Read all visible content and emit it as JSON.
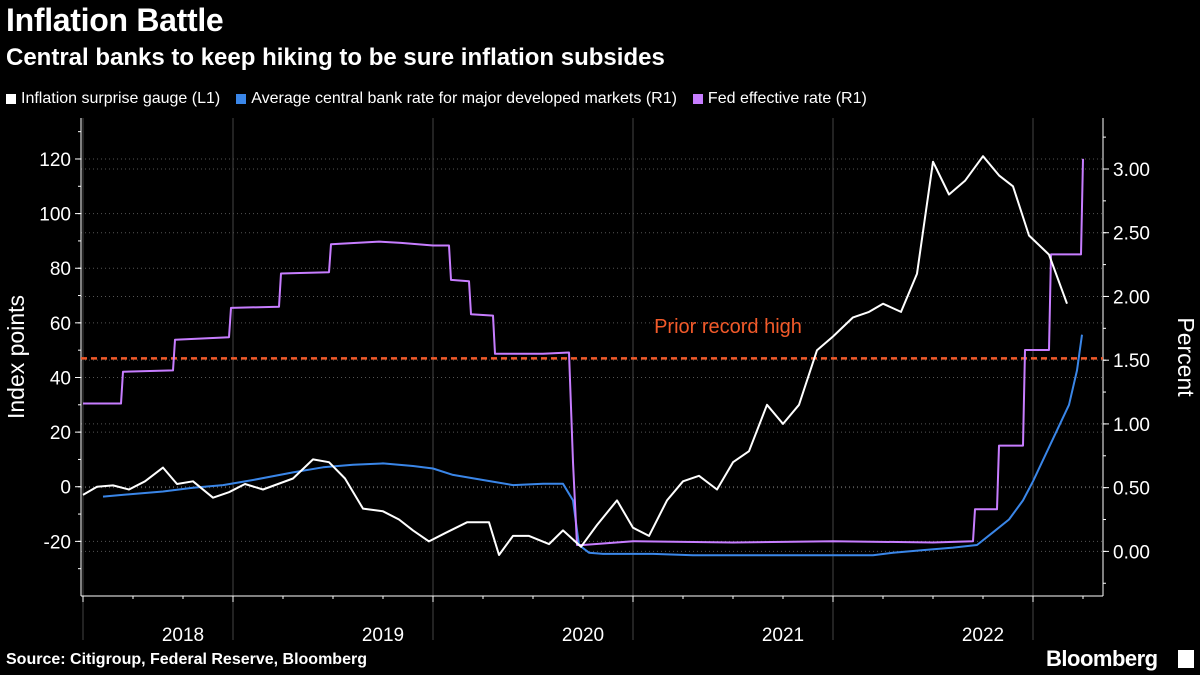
{
  "chart_data": {
    "type": "line",
    "title": "Inflation Battle",
    "subtitle": "Central banks to keep hiking to be sure inflation subsides",
    "source": "Source: Citigroup, Federal Reserve, Bloomberg",
    "brand": "Bloomberg",
    "left_axis": {
      "label": "Index points",
      "ylim": [
        -40,
        135
      ],
      "ticks": [
        -20,
        0,
        20,
        40,
        60,
        80,
        100,
        120
      ],
      "tick_labels": [
        "-20",
        "0",
        "20",
        "40",
        "60",
        "80",
        "100",
        "120"
      ]
    },
    "right_axis": {
      "label": "Percent",
      "ylim": [
        -0.35,
        3.4
      ],
      "ticks": [
        0,
        0.5,
        1,
        1.5,
        2,
        2.5,
        3
      ],
      "tick_labels": [
        "0.00",
        "0.50",
        "1.00",
        "1.50",
        "2.00",
        "2.50",
        "3.00"
      ]
    },
    "xlim": [
      2017.24,
      2022.35
    ],
    "year_boundaries": [
      2017.25,
      2018,
      2019,
      2020,
      2021,
      2022
    ],
    "x_labels": [
      {
        "x": 2017.75,
        "label": "2018"
      },
      {
        "x": 2018.75,
        "label": "2019"
      },
      {
        "x": 2019.75,
        "label": "2020"
      },
      {
        "x": 2020.75,
        "label": "2021"
      },
      {
        "x": 2021.75,
        "label": "2022"
      }
    ],
    "reference_line": {
      "axis": "left",
      "value": 47,
      "label": "Prior record high",
      "color": "#f25a2a"
    },
    "series": [
      {
        "name": "Inflation surprise gauge (L1)",
        "axis": "left",
        "color": "#ffffff",
        "points": [
          [
            2017.25,
            -3
          ],
          [
            2017.32,
            0
          ],
          [
            2017.4,
            0.5
          ],
          [
            2017.48,
            -1
          ],
          [
            2017.56,
            2
          ],
          [
            2017.65,
            7
          ],
          [
            2017.72,
            1
          ],
          [
            2017.8,
            2
          ],
          [
            2017.9,
            -4
          ],
          [
            2017.98,
            -2
          ],
          [
            2018.06,
            1
          ],
          [
            2018.15,
            -1
          ],
          [
            2018.3,
            3
          ],
          [
            2018.4,
            10
          ],
          [
            2018.48,
            9
          ],
          [
            2018.56,
            3
          ],
          [
            2018.65,
            -8
          ],
          [
            2018.75,
            -9
          ],
          [
            2018.83,
            -12
          ],
          [
            2018.9,
            -16
          ],
          [
            2018.98,
            -20
          ],
          [
            2019.06,
            -17
          ],
          [
            2019.17,
            -13
          ],
          [
            2019.28,
            -13
          ],
          [
            2019.33,
            -25
          ],
          [
            2019.4,
            -18
          ],
          [
            2019.48,
            -18
          ],
          [
            2019.58,
            -21
          ],
          [
            2019.65,
            -16
          ],
          [
            2019.74,
            -22
          ],
          [
            2019.82,
            -14
          ],
          [
            2019.92,
            -5
          ],
          [
            2020.0,
            -15
          ],
          [
            2020.08,
            -18
          ],
          [
            2020.17,
            -5
          ],
          [
            2020.25,
            2
          ],
          [
            2020.33,
            4
          ],
          [
            2020.42,
            -1
          ],
          [
            2020.5,
            9
          ],
          [
            2020.58,
            13
          ],
          [
            2020.67,
            30
          ],
          [
            2020.75,
            23
          ],
          [
            2020.83,
            30
          ],
          [
            2020.92,
            50
          ],
          [
            2021.0,
            55
          ],
          [
            2021.1,
            62
          ],
          [
            2021.18,
            64
          ],
          [
            2021.25,
            67
          ],
          [
            2021.34,
            64
          ],
          [
            2021.42,
            78
          ],
          [
            2021.5,
            119
          ],
          [
            2021.58,
            107
          ],
          [
            2021.66,
            112
          ],
          [
            2021.75,
            121
          ],
          [
            2021.83,
            114
          ],
          [
            2021.9,
            110
          ],
          [
            2021.98,
            92
          ],
          [
            2022.08,
            85
          ],
          [
            2022.17,
            67
          ]
        ]
      },
      {
        "name": "Average central bank rate for major developed markets (R1)",
        "axis": "right",
        "color": "#3a86e8",
        "points": [
          [
            2017.35,
            0.43
          ],
          [
            2017.5,
            0.45
          ],
          [
            2017.65,
            0.47
          ],
          [
            2017.8,
            0.5
          ],
          [
            2017.95,
            0.52
          ],
          [
            2018.1,
            0.56
          ],
          [
            2018.3,
            0.62
          ],
          [
            2018.45,
            0.66
          ],
          [
            2018.6,
            0.68
          ],
          [
            2018.75,
            0.69
          ],
          [
            2018.9,
            0.67
          ],
          [
            2019.0,
            0.65
          ],
          [
            2019.1,
            0.6
          ],
          [
            2019.25,
            0.56
          ],
          [
            2019.4,
            0.52
          ],
          [
            2019.55,
            0.53
          ],
          [
            2019.65,
            0.53
          ],
          [
            2019.7,
            0.4
          ],
          [
            2019.73,
            0.05
          ],
          [
            2019.78,
            -0.01
          ],
          [
            2019.85,
            -0.02
          ],
          [
            2019.95,
            -0.02
          ],
          [
            2020.1,
            -0.02
          ],
          [
            2020.3,
            -0.03
          ],
          [
            2020.5,
            -0.03
          ],
          [
            2020.7,
            -0.03
          ],
          [
            2020.9,
            -0.03
          ],
          [
            2021.1,
            -0.03
          ],
          [
            2021.2,
            -0.03
          ],
          [
            2021.3,
            -0.01
          ],
          [
            2021.45,
            0.01
          ],
          [
            2021.6,
            0.03
          ],
          [
            2021.72,
            0.05
          ],
          [
            2021.8,
            0.15
          ],
          [
            2021.88,
            0.25
          ],
          [
            2021.95,
            0.4
          ],
          [
            2022.0,
            0.55
          ],
          [
            2022.06,
            0.75
          ],
          [
            2022.12,
            0.95
          ],
          [
            2022.18,
            1.15
          ],
          [
            2022.22,
            1.42
          ],
          [
            2022.245,
            1.7
          ]
        ]
      },
      {
        "name": "Fed effective rate (R1)",
        "axis": "right",
        "color": "#c77dff",
        "points": [
          [
            2017.25,
            1.16
          ],
          [
            2017.44,
            1.16
          ],
          [
            2017.45,
            1.41
          ],
          [
            2017.7,
            1.42
          ],
          [
            2017.71,
            1.66
          ],
          [
            2017.98,
            1.68
          ],
          [
            2017.99,
            1.91
          ],
          [
            2018.23,
            1.92
          ],
          [
            2018.24,
            2.18
          ],
          [
            2018.48,
            2.19
          ],
          [
            2018.49,
            2.41
          ],
          [
            2018.73,
            2.43
          ],
          [
            2018.84,
            2.42
          ],
          [
            2019.0,
            2.4
          ],
          [
            2019.08,
            2.4
          ],
          [
            2019.09,
            2.13
          ],
          [
            2019.18,
            2.12
          ],
          [
            2019.19,
            1.86
          ],
          [
            2019.3,
            1.85
          ],
          [
            2019.31,
            1.55
          ],
          [
            2019.55,
            1.55
          ],
          [
            2019.68,
            1.56
          ],
          [
            2019.69,
            1.13
          ],
          [
            2019.7,
            0.7
          ],
          [
            2019.72,
            0.05
          ],
          [
            2019.75,
            0.05
          ],
          [
            2020.0,
            0.08
          ],
          [
            2020.5,
            0.07
          ],
          [
            2021.0,
            0.08
          ],
          [
            2021.5,
            0.07
          ],
          [
            2021.7,
            0.08
          ],
          [
            2021.71,
            0.33
          ],
          [
            2021.82,
            0.33
          ],
          [
            2021.83,
            0.83
          ],
          [
            2021.95,
            0.83
          ],
          [
            2021.96,
            1.58
          ],
          [
            2022.08,
            1.58
          ],
          [
            2022.09,
            2.33
          ],
          [
            2022.24,
            2.33
          ],
          [
            2022.25,
            3.08
          ]
        ]
      }
    ]
  }
}
